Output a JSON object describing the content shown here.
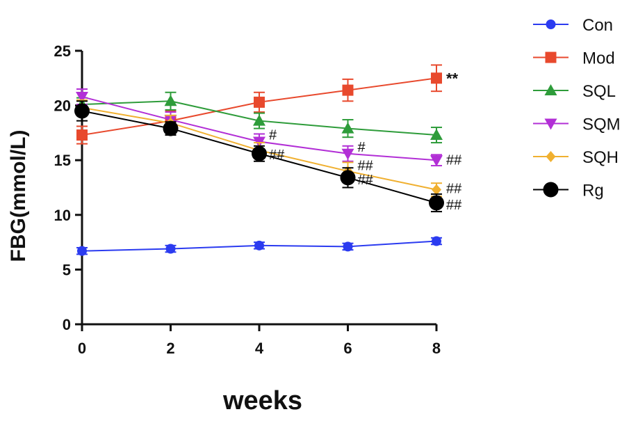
{
  "chart_data": {
    "type": "line",
    "title": "",
    "xlabel": "weeks",
    "ylabel": "FBG(mmol/L)",
    "x": [
      0,
      2,
      4,
      6,
      8
    ],
    "xlim": [
      0,
      8
    ],
    "ylim": [
      0,
      25
    ],
    "xticks": [
      "0",
      "2",
      "4",
      "6",
      "8"
    ],
    "yticks": [
      "0",
      "5",
      "10",
      "15",
      "20",
      "25"
    ],
    "grid": false,
    "legend_position": "right",
    "series": [
      {
        "name": "Con",
        "color": "#2b3bf0",
        "marker": "circle",
        "values": [
          6.7,
          6.9,
          7.2,
          7.1,
          7.6
        ],
        "errors": [
          0.3,
          0.3,
          0.3,
          0.3,
          0.3
        ]
      },
      {
        "name": "Mod",
        "color": "#e8492d",
        "marker": "square",
        "values": [
          17.3,
          18.6,
          20.3,
          21.4,
          22.5
        ],
        "errors": [
          0.8,
          0.9,
          0.9,
          1.0,
          1.2
        ]
      },
      {
        "name": "SQL",
        "color": "#2e9c3a",
        "marker": "triangle-up",
        "values": [
          20.1,
          20.4,
          18.6,
          17.9,
          17.3
        ],
        "errors": [
          0.6,
          0.8,
          0.7,
          0.8,
          0.7
        ]
      },
      {
        "name": "SQM",
        "color": "#b22fd6",
        "marker": "triangle-down",
        "values": [
          20.8,
          18.7,
          16.7,
          15.6,
          15.0
        ],
        "errors": [
          0.7,
          0.7,
          0.7,
          0.7,
          0.5
        ]
      },
      {
        "name": "SQH",
        "color": "#f0b030",
        "marker": "diamond",
        "values": [
          19.8,
          18.4,
          15.9,
          14.0,
          12.3
        ],
        "errors": [
          0.7,
          0.7,
          0.7,
          0.8,
          0.6
        ]
      },
      {
        "name": "Rg",
        "color": "#000000",
        "marker": "circle-large",
        "values": [
          19.5,
          17.9,
          15.6,
          13.4,
          11.1
        ],
        "errors": [
          0.9,
          0.6,
          0.7,
          0.9,
          0.8
        ]
      }
    ],
    "annotations": [
      {
        "text": "**",
        "x": 8,
        "y": 22.5,
        "style": "bold"
      },
      {
        "text": "#",
        "x": 4,
        "y": 17.4,
        "style": "normal"
      },
      {
        "text": "##",
        "x": 4,
        "y": 15.6,
        "style": "normal"
      },
      {
        "text": "#",
        "x": 6,
        "y": 16.3,
        "style": "normal"
      },
      {
        "text": "##",
        "x": 6,
        "y": 14.6,
        "style": "normal"
      },
      {
        "text": "##",
        "x": 6,
        "y": 13.3,
        "style": "normal"
      },
      {
        "text": "##",
        "x": 8,
        "y": 15.1,
        "style": "normal"
      },
      {
        "text": "##",
        "x": 8,
        "y": 12.5,
        "style": "normal"
      },
      {
        "text": "##",
        "x": 8,
        "y": 11.0,
        "style": "normal"
      }
    ]
  }
}
